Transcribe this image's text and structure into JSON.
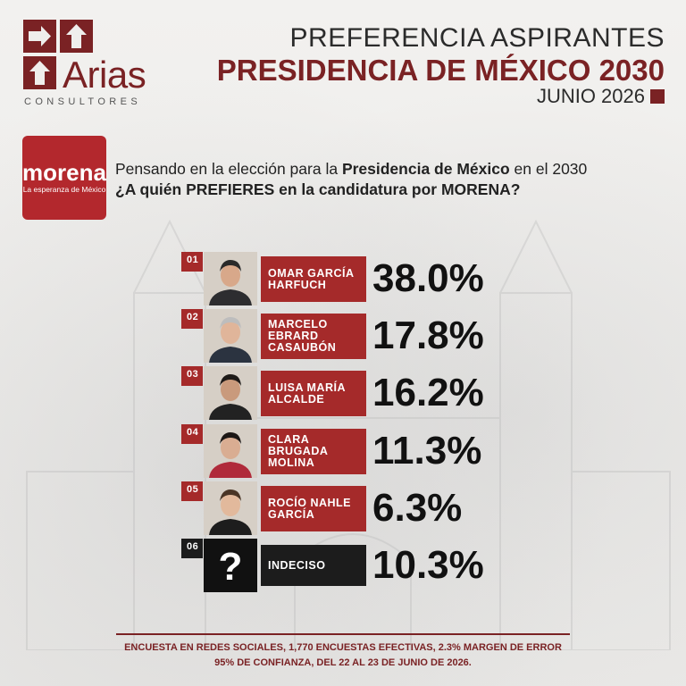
{
  "logo": {
    "brand": "Arias",
    "subtitle": "CONSULTORES"
  },
  "header": {
    "title_1": "PREFERENCIA ASPIRANTES",
    "title_2": "PRESIDENCIA DE MÉXICO 2030",
    "date": "JUNIO 2026"
  },
  "party": {
    "name": "morena",
    "slogan": "La esperanza de México"
  },
  "question": {
    "line1_a": "Pensando en la elección para la ",
    "line1_b": "Presidencia de México",
    "line1_c": " en el 2030",
    "line2": "¿A quién PREFIERES en la candidatura por MORENA?"
  },
  "chart_data": {
    "type": "table",
    "rows": [
      {
        "rank": "01",
        "name": "OMAR GARCÍA\nHARFUCH",
        "value": 38.0,
        "label": "38.0%"
      },
      {
        "rank": "02",
        "name": "MARCELO\nEBRARD\nCASAUBÓN",
        "value": 17.8,
        "label": "17.8%"
      },
      {
        "rank": "03",
        "name": "LUISA MARÍA\nALCALDE",
        "value": 16.2,
        "label": "16.2%"
      },
      {
        "rank": "04",
        "name": "CLARA\nBRUGADA\nMOLINA",
        "value": 11.3,
        "label": "11.3%"
      },
      {
        "rank": "05",
        "name": "ROCÍO NAHLE\nGARCÍA",
        "value": 6.3,
        "label": "6.3%"
      },
      {
        "rank": "06",
        "name": "INDECISO",
        "value": 10.3,
        "label": "10.3%"
      }
    ]
  },
  "colors": {
    "brand": "#7a2224",
    "row_red": "#a52a2a",
    "undecided": "#1c1c1c"
  },
  "footer": {
    "line1": "ENCUESTA EN REDES SOCIALES, 1,770 ENCUESTAS EFECTIVAS, 2.3% MARGEN DE ERROR",
    "line2": "95% DE CONFIANZA, DEL 22 AL 23 DE JUNIO DE 2026."
  }
}
